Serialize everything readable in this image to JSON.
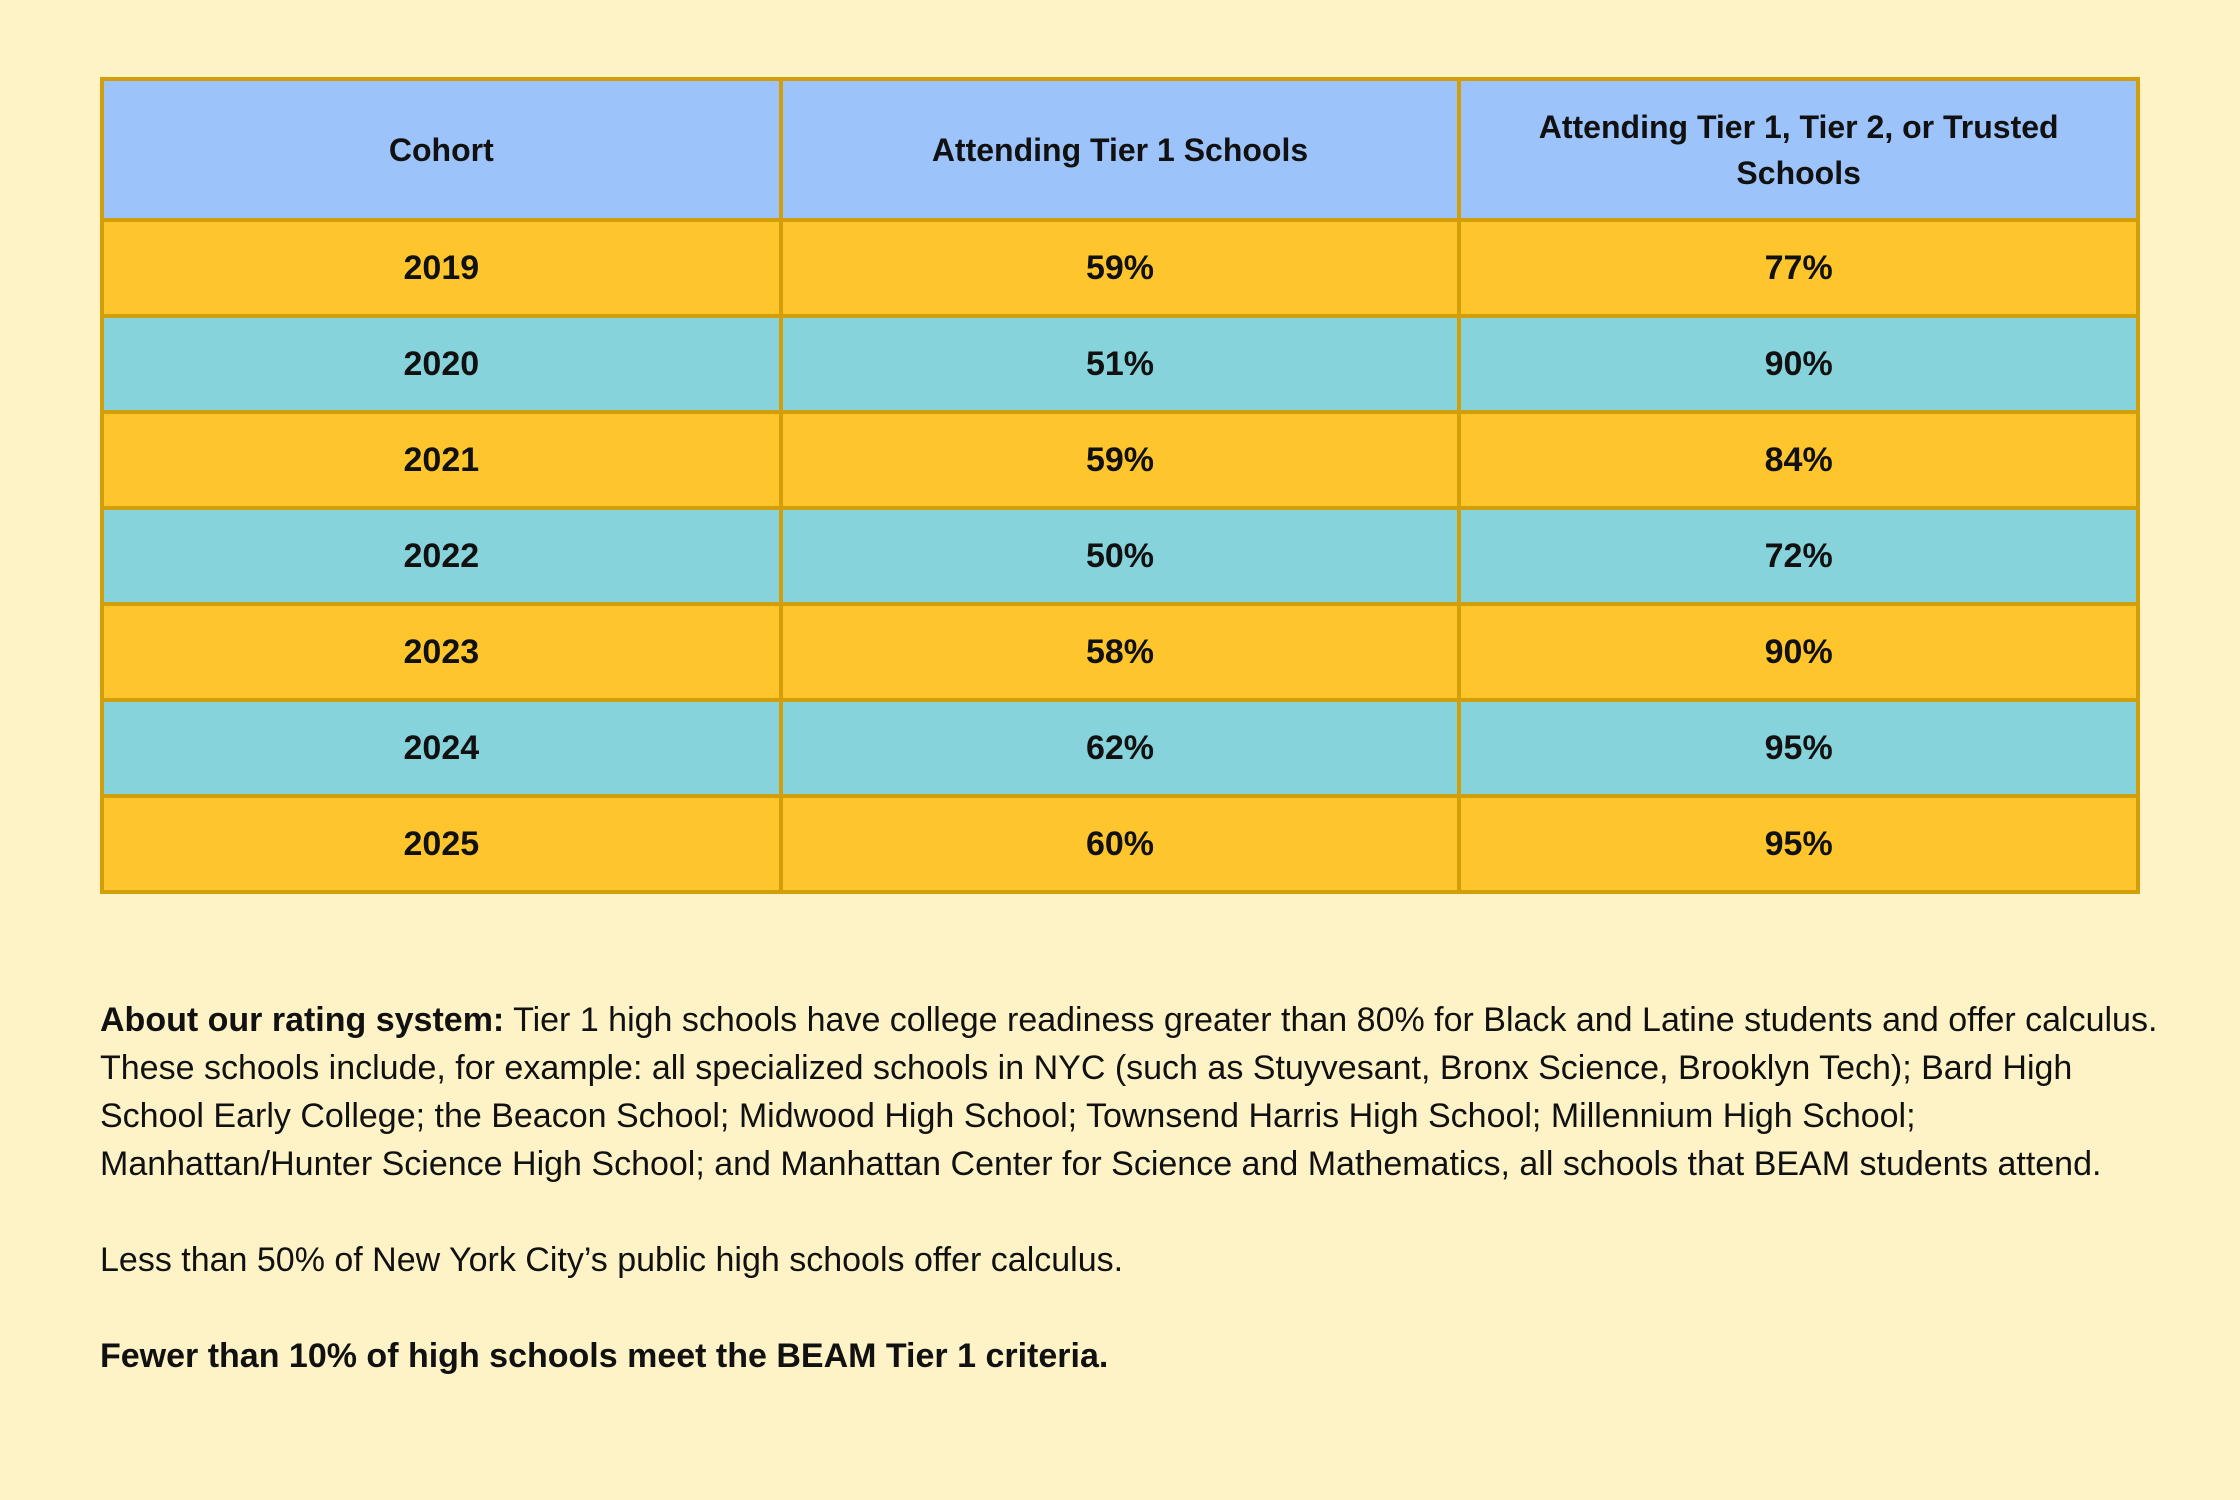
{
  "table": {
    "headers": [
      "Cohort",
      "Attending Tier 1 Schools",
      "Attending Tier 1, Tier 2, or Trusted Schools"
    ],
    "rows": [
      [
        "2019",
        "59%",
        "77%"
      ],
      [
        "2020",
        "51%",
        "90%"
      ],
      [
        "2021",
        "59%",
        "84%"
      ],
      [
        "2022",
        "50%",
        "72%"
      ],
      [
        "2023",
        "58%",
        "90%"
      ],
      [
        "2024",
        "62%",
        "95%"
      ],
      [
        "2025",
        "60%",
        "95%"
      ]
    ]
  },
  "notes": {
    "rating_label": "About our rating system:",
    "rating_text": " Tier 1 high schools have college readiness greater than 80% for Black and Latine students and offer calculus. These schools include, for example: all specialized schools in NYC (such as Stuyvesant, Bronx Science, Brooklyn Tech); Bard High School Early College; the Beacon School; Midwood High School; Townsend Harris High School; Millennium High School; Manhattan/Hunter Science High School; and Manhattan Center for Science and Mathematics, all schools that BEAM students attend.",
    "calculus_note": "Less than 50% of New York City’s public high schools offer calculus.",
    "tier1_note": "Fewer than 10% of high schools meet the BEAM Tier 1 criteria."
  },
  "colors": {
    "page_background": "#fef3c7",
    "header_fill": "#9dc3fb",
    "odd_row_fill": "#fec62c",
    "even_row_fill": "#86d3db",
    "border": "#d29e0a"
  }
}
